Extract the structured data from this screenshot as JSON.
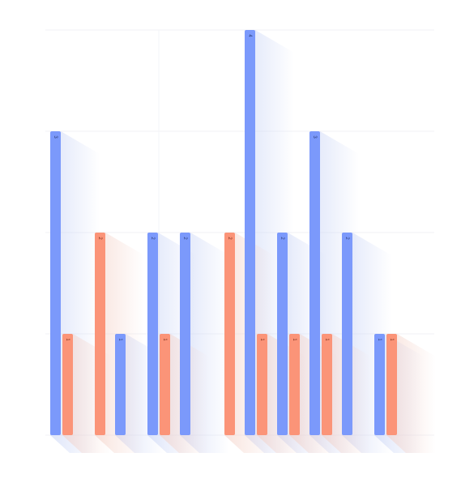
{
  "chart_data": {
    "type": "bar",
    "title": "",
    "xlabel": "",
    "ylabel": "",
    "ylim": [
      0,
      4
    ],
    "categories": [
      "",
      "",
      "",
      "",
      "",
      "",
      "",
      "",
      "",
      "",
      "",
      ""
    ],
    "series": [
      {
        "values": [
          3,
          null,
          1,
          2,
          2,
          null,
          4,
          2,
          3,
          2,
          1,
          null
        ]
      },
      {
        "values": [
          1,
          2,
          null,
          1,
          null,
          2,
          1,
          1,
          1,
          null,
          1,
          null
        ]
      }
    ],
    "data_labels": [
      [
        "3",
        null,
        "1",
        "2",
        "2",
        null,
        "4",
        "2",
        "3",
        "2",
        "1",
        null
      ],
      [
        "1",
        "2",
        null,
        "1",
        null,
        "2",
        "1",
        "1",
        "1",
        null,
        "1",
        null
      ]
    ],
    "colors": [
      "#7b99fb",
      "#fb9478"
    ],
    "grid": true,
    "legend": "none"
  }
}
